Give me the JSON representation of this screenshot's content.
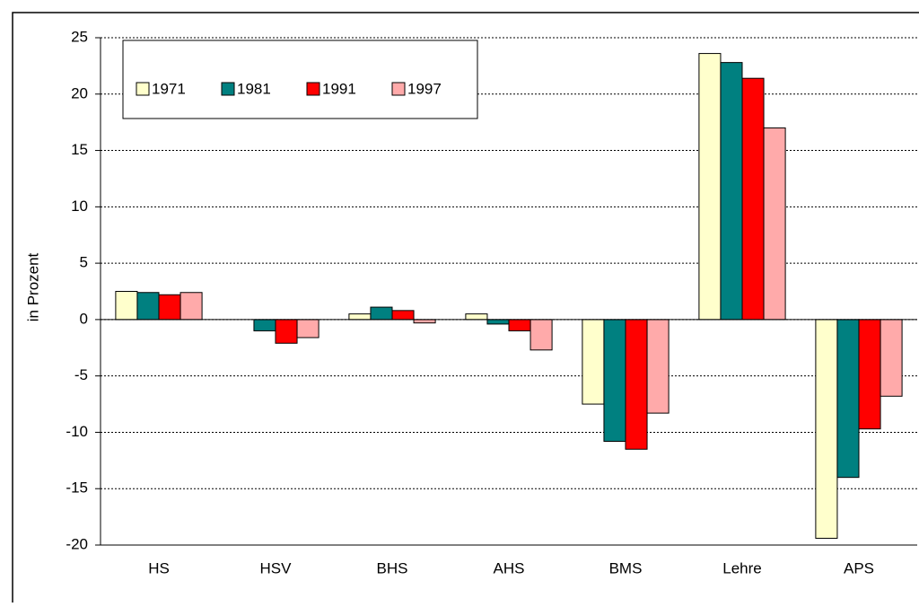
{
  "chart_data": {
    "type": "bar",
    "y_label": "in Prozent",
    "categories": [
      "HS",
      "HSV",
      "BHS",
      "AHS",
      "BMS",
      "Lehre",
      "APS"
    ],
    "series": [
      {
        "name": "1971",
        "color": "#ffffcc",
        "values": [
          2.5,
          0,
          0.5,
          0.5,
          -7.5,
          23.6,
          -19.4
        ]
      },
      {
        "name": "1981",
        "color": "#008080",
        "values": [
          2.4,
          -1.0,
          1.1,
          -0.4,
          -10.8,
          22.8,
          -14.0
        ]
      },
      {
        "name": "1991",
        "color": "#ff0000",
        "values": [
          2.2,
          -2.1,
          0.8,
          -1.0,
          -11.5,
          21.4,
          -9.7
        ]
      },
      {
        "name": "1997",
        "color": "#ffaaaa",
        "values": [
          2.4,
          -1.6,
          -0.3,
          -2.7,
          -8.3,
          17.0,
          -6.8
        ]
      }
    ],
    "ylim": [
      -20,
      25
    ],
    "yticks": [
      -20,
      -15,
      -10,
      -5,
      0,
      5,
      10,
      15,
      20,
      25
    ],
    "grid": true
  }
}
